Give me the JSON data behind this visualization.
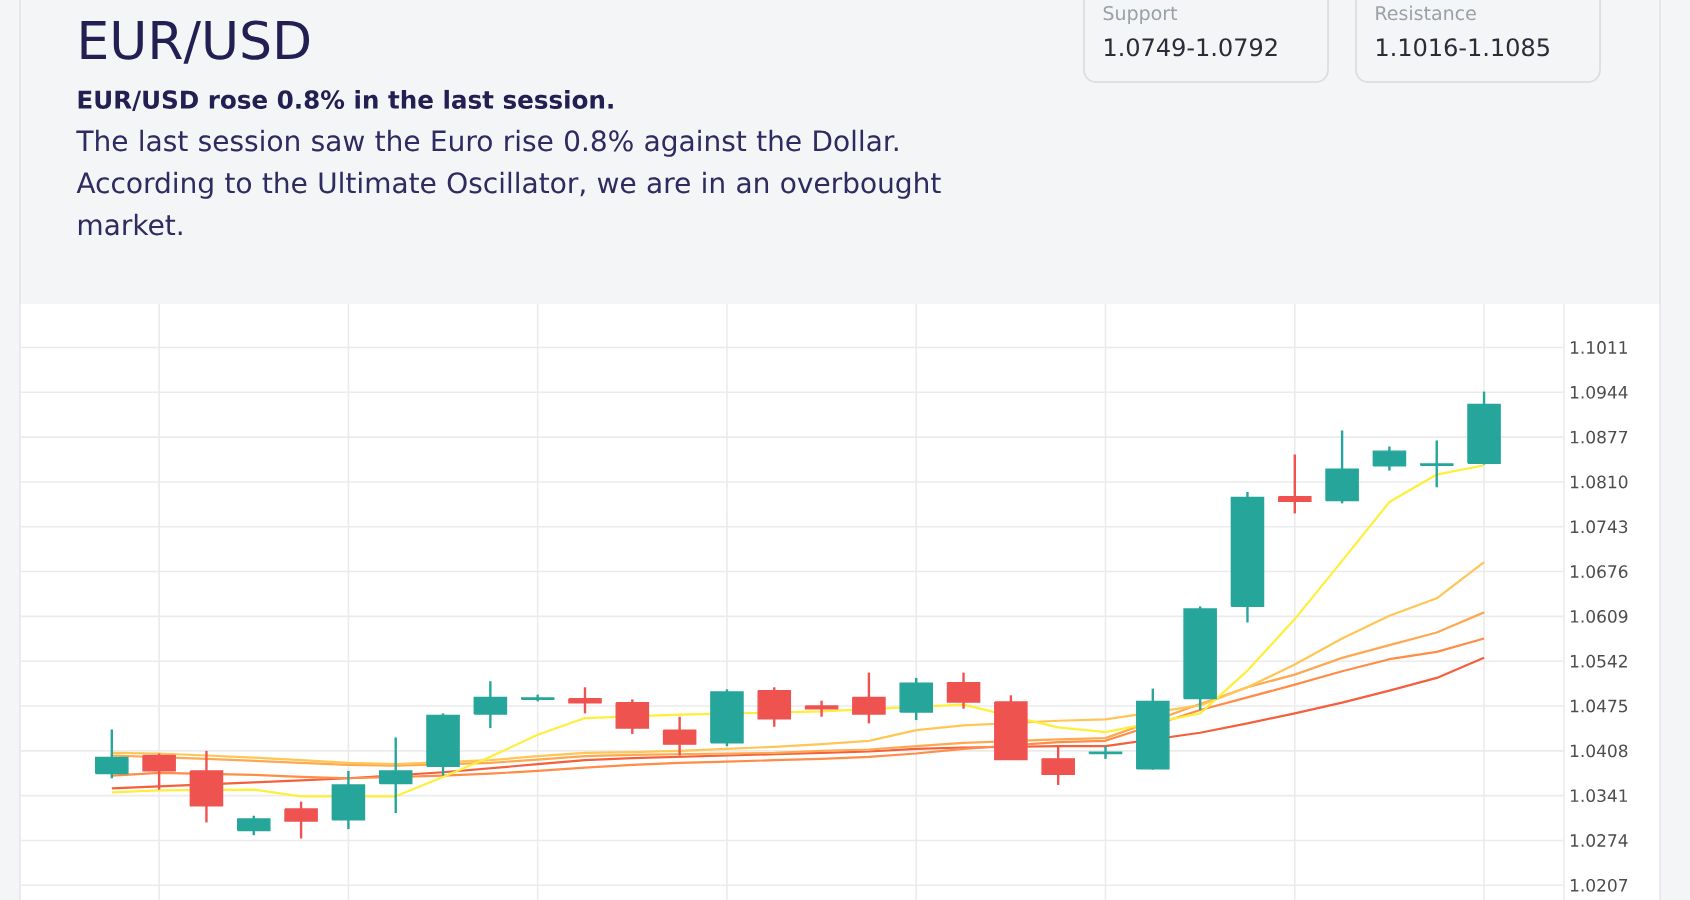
{
  "chart_data": {
    "type": "candlestick",
    "title": "EUR/USD",
    "subtitle": "EUR/USD rose 0.8% in the last session.",
    "annotations": [
      "The last session saw the Euro rise 0.8% against the Dollar. According to the Ultimate Oscillator, we are in an overbought market.",
      "Support",
      "1.0749-1.0792",
      "Resistance",
      "1.1016-1.1085"
    ],
    "categories": [
      null,
      null,
      null,
      null,
      null,
      null,
      null,
      null,
      null,
      null,
      null,
      null,
      null,
      null,
      null,
      null,
      null,
      null,
      null,
      null,
      null,
      null,
      null,
      null,
      null,
      null,
      null,
      null,
      null,
      null
    ],
    "ohlc": [
      [
        1.0374,
        1.044,
        1.0367,
        1.0398
      ],
      [
        1.0401,
        1.0404,
        1.035,
        1.0378
      ],
      [
        1.0378,
        1.0408,
        1.0301,
        1.0326
      ],
      [
        1.0289,
        1.0311,
        1.0282,
        1.0306
      ],
      [
        1.0321,
        1.0332,
        1.0277,
        1.0303
      ],
      [
        1.0305,
        1.0378,
        1.0291,
        1.0357
      ],
      [
        1.0359,
        1.0428,
        1.0315,
        1.0378
      ],
      [
        1.0385,
        1.0464,
        1.0371,
        1.0461
      ],
      [
        1.0463,
        1.0512,
        1.0442,
        1.0488
      ],
      [
        1.0485,
        1.0492,
        1.0482,
        1.0487
      ],
      [
        1.0486,
        1.0503,
        1.0464,
        1.048
      ],
      [
        1.048,
        1.0485,
        1.0433,
        1.0442
      ],
      [
        1.0439,
        1.0459,
        1.0401,
        1.0418
      ],
      [
        1.042,
        1.05,
        1.0415,
        1.0496
      ],
      [
        1.0498,
        1.0503,
        1.0444,
        1.0456
      ],
      [
        1.0475,
        1.0483,
        1.0459,
        1.0471
      ],
      [
        1.0488,
        1.0525,
        1.0449,
        1.0463
      ],
      [
        1.0466,
        1.0517,
        1.0454,
        1.0509
      ],
      [
        1.051,
        1.0525,
        1.0471,
        1.0481
      ],
      [
        1.0481,
        1.0491,
        1.0395,
        1.0395
      ],
      [
        1.0396,
        1.0415,
        1.0357,
        1.0373
      ],
      [
        1.0404,
        1.0415,
        1.0396,
        1.0406
      ],
      [
        1.0381,
        1.0501,
        1.038,
        1.0482
      ],
      [
        1.0486,
        1.0624,
        1.0469,
        1.062
      ],
      [
        1.0624,
        1.0795,
        1.06,
        1.0787
      ],
      [
        1.0788,
        1.0851,
        1.0763,
        1.0781
      ],
      [
        1.0782,
        1.0887,
        1.0778,
        1.0829
      ],
      [
        1.0834,
        1.0863,
        1.0827,
        1.0856
      ],
      [
        1.0835,
        1.0872,
        1.0802,
        1.0837
      ],
      [
        1.0838,
        1.0945,
        1.0836,
        1.0926
      ]
    ],
    "colors": [
      "#26a69a",
      "#ef5350",
      "#ef5350",
      "#26a69a",
      "#ef5350",
      "#26a69a",
      "#26a69a",
      "#26a69a",
      "#26a69a",
      "#26a69a",
      "#ef5350",
      "#ef5350",
      "#ef5350",
      "#26a69a",
      "#ef5350",
      "#ef5350",
      "#ef5350",
      "#26a69a",
      "#ef5350",
      "#ef5350",
      "#ef5350",
      "#26a69a",
      "#26a69a",
      "#26a69a",
      "#26a69a",
      "#ef5350",
      "#26a69a",
      "#26a69a",
      "#26a69a",
      "#26a69a"
    ],
    "series": [
      {
        "type": "line",
        "color": "#f55f3c",
        "values": [
          1.0352,
          1.0355,
          null,
          1.0361,
          1.0364,
          1.0367,
          null,
          1.0376,
          1.0382,
          1.0388,
          1.0394,
          1.0397,
          1.0399,
          1.0401,
          1.0403,
          1.0405,
          1.0407,
          1.0411,
          1.0413,
          null,
          1.0415,
          1.0415,
          null,
          1.0435,
          1.0449,
          1.0464,
          1.048,
          1.0498,
          1.0517,
          1.0547
        ]
      },
      {
        "type": "line",
        "color": "#ff8c47",
        "values": [
          1.0371,
          1.0375,
          null,
          1.0372,
          1.0369,
          1.0367,
          null,
          1.0371,
          1.0374,
          1.0378,
          1.0383,
          1.0387,
          1.039,
          1.0392,
          1.0394,
          1.0396,
          1.0399,
          1.0404,
          1.0411,
          null,
          1.0421,
          1.0423,
          null,
          1.0469,
          1.0488,
          1.0507,
          1.0527,
          1.0545,
          1.0556,
          1.0576
        ]
      },
      {
        "type": "line",
        "color": "#ffa852",
        "values": [
          1.0401,
          null,
          1.0396,
          1.0393,
          1.039,
          1.0387,
          1.0386,
          null,
          1.039,
          1.0395,
          1.04,
          1.0402,
          1.0403,
          1.0404,
          1.0405,
          1.0408,
          1.041,
          1.0415,
          1.042,
          null,
          1.0425,
          1.0427,
          null,
          1.0478,
          1.0503,
          1.0522,
          1.0547,
          1.0566,
          1.0585,
          1.0615
        ]
      },
      {
        "type": "line",
        "color": "#ffc655",
        "values": [
          1.0405,
          1.0404,
          1.0401,
          1.0398,
          1.0394,
          1.039,
          1.0388,
          null,
          1.0394,
          1.04,
          1.0405,
          1.0406,
          1.0408,
          1.0411,
          1.0414,
          1.0418,
          1.0423,
          1.0439,
          1.0446,
          null,
          1.0453,
          1.0455,
          null,
          1.0476,
          1.0503,
          1.0537,
          1.0576,
          1.061,
          1.0636,
          1.069
        ]
      },
      {
        "type": "line",
        "color": "#ffee3a",
        "values": [
          1.0346,
          1.0349,
          null,
          1.035,
          1.034,
          null,
          1.034,
          1.0369,
          1.0399,
          1.0432,
          1.0457,
          null,
          1.0462,
          null,
          null,
          1.0467,
          null,
          null,
          1.0477,
          null,
          1.0443,
          1.0436,
          null,
          1.0464,
          1.0528,
          1.0605,
          1.0692,
          1.078,
          1.0821,
          1.0835
        ]
      }
    ],
    "ylim": [
      1.0185,
      1.1076
    ],
    "yticks": [
      1.0207,
      1.0274,
      1.0341,
      1.0408,
      1.0475,
      1.0542,
      1.0609,
      1.0676,
      1.0743,
      {
        "value": 1.081,
        "label": "1.0810"
      },
      1.0877,
      1.0944,
      1.1011
    ],
    "grid": true,
    "tick_labels": "y"
  }
}
